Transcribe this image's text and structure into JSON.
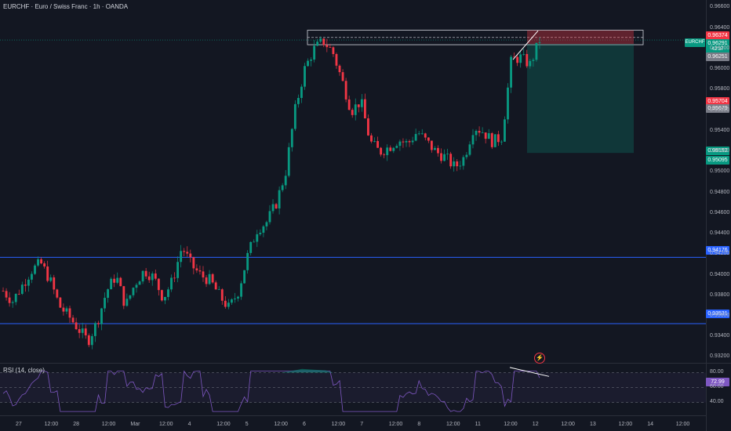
{
  "header": {
    "title": "EURCHF · Euro / Swiss Franc · 1h · OANDA"
  },
  "rsi": {
    "title": "RSI (14, close)",
    "value_tag": "72.99",
    "levels": [
      "80.00",
      "60.00",
      "40.00"
    ]
  },
  "symbol_tag": "EURCHF",
  "price_axis": [
    "0.96600",
    "0.96400",
    "0.96200",
    "0.96000",
    "0.95800",
    "0.95600",
    "0.95400",
    "0.95200",
    "0.95000",
    "0.94800",
    "0.94600",
    "0.94400",
    "0.94200",
    "0.94000",
    "0.93800",
    "0.93600",
    "0.93400",
    "0.93200"
  ],
  "price_tags": {
    "stop_loss": "0.96374",
    "current": "0.96291",
    "countdown": "42:37",
    "entry": "0.96251",
    "tp_mark_red": "0.95704",
    "tp_mark_grey": "0.95679",
    "target_green": "0.95192",
    "target_blue": "0.95095",
    "support_upper": "0.94176",
    "support_lower": "0.93531"
  },
  "time_axis": [
    "27",
    "12:00",
    "28",
    "12:00",
    "Mar",
    "12:00",
    "4",
    "12:00",
    "5",
    "12:00",
    "6",
    "12:00",
    "7",
    "12:00",
    "8",
    "12:00",
    "11",
    "12:00",
    "12",
    "12:00",
    "13",
    "12:00",
    "14",
    "12:00"
  ],
  "colors": {
    "up": "#089981",
    "down": "#f23645",
    "background": "#131722",
    "level_line": "#2962ff",
    "rsi_line": "#7e57c2"
  },
  "chart_data": {
    "type": "candlestick",
    "title": "EURCHF · Euro / Swiss Franc · 1h · OANDA",
    "y_range": [
      0.9315,
      0.9668
    ],
    "x": [
      "27",
      "12:00",
      "28",
      "12:00",
      "Mar",
      "12:00",
      "4",
      "12:00",
      "5",
      "12:00",
      "6",
      "12:00",
      "7",
      "12:00",
      "8",
      "12:00",
      "11",
      "12:00",
      "12"
    ],
    "close_path": [
      0.9385,
      0.9375,
      0.939,
      0.9405,
      0.9412,
      0.9395,
      0.937,
      0.936,
      0.9348,
      0.9336,
      0.9355,
      0.9385,
      0.94,
      0.937,
      0.9392,
      0.9405,
      0.9398,
      0.9378,
      0.9395,
      0.9428,
      0.941,
      0.94,
      0.9395,
      0.938,
      0.9368,
      0.9385,
      0.942,
      0.9445,
      0.9452,
      0.947,
      0.95,
      0.956,
      0.96,
      0.962,
      0.9628,
      0.9618,
      0.959,
      0.956,
      0.957,
      0.953,
      0.952,
      0.9525,
      0.9532,
      0.9528,
      0.954,
      0.953,
      0.952,
      0.9515,
      0.9505,
      0.9515,
      0.9545,
      0.954,
      0.953,
      0.9535,
      0.961,
      0.9612,
      0.9605,
      0.9629
    ],
    "series": [
      {
        "name": "RSI (14, close)",
        "approx_range": [
          30,
          80
        ],
        "last": 72.99
      }
    ],
    "annotations": {
      "resistance_zone": [
        0.9625,
        0.96374
      ],
      "long_position": {
        "entry": 0.96251,
        "stop": 0.96374,
        "target": 0.95192
      },
      "support_levels": [
        0.94176,
        0.93531
      ],
      "trendline_price": [
        0.961,
        0.9638
      ],
      "rsi_divergence_line": [
        79,
        72
      ]
    },
    "rsi_levels": [
      80,
      60,
      40
    ]
  }
}
